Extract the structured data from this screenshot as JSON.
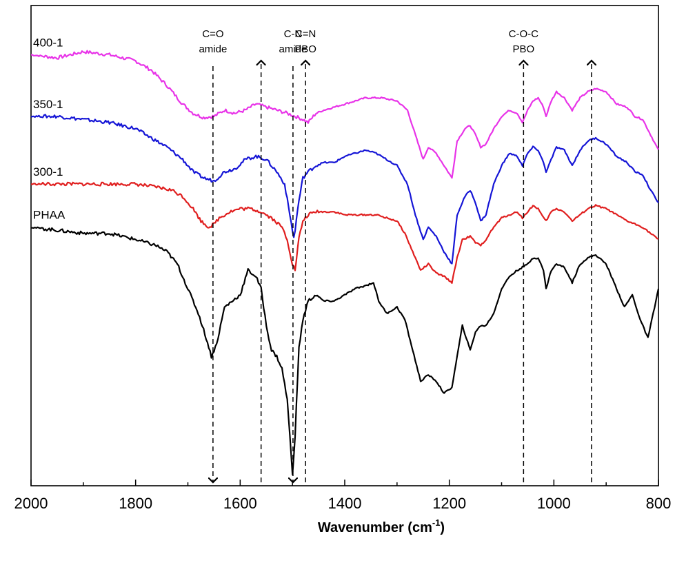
{
  "chart_data": {
    "type": "line",
    "xlabel": "Wavenumber (cm",
    "xlabel_sup": "-1",
    "xlabel_end": ")",
    "ylabel": "",
    "xlim": [
      2000,
      800
    ],
    "x_reversed": true,
    "xticks": [
      "2000",
      "1800",
      "1600",
      "1400",
      "1200",
      "1000",
      "800"
    ],
    "grid": false,
    "y_ticks_shown": false,
    "series": [
      {
        "name": "400-1",
        "color": "#e833e8",
        "points": [
          [
            2000,
            18
          ],
          [
            1950,
            17.5
          ],
          [
            1900,
            18.5
          ],
          [
            1850,
            18
          ],
          [
            1800,
            17
          ],
          [
            1770,
            15.5
          ],
          [
            1740,
            13
          ],
          [
            1710,
            10
          ],
          [
            1690,
            8.5
          ],
          [
            1670,
            7.8
          ],
          [
            1650,
            8
          ],
          [
            1630,
            9
          ],
          [
            1610,
            8.5
          ],
          [
            1590,
            9
          ],
          [
            1570,
            10
          ],
          [
            1550,
            9.5
          ],
          [
            1530,
            9
          ],
          [
            1510,
            8.5
          ],
          [
            1495,
            8
          ],
          [
            1480,
            7.5
          ],
          [
            1470,
            7
          ],
          [
            1455,
            8.5
          ],
          [
            1440,
            9
          ],
          [
            1420,
            9.5
          ],
          [
            1400,
            10
          ],
          [
            1380,
            10.5
          ],
          [
            1360,
            11
          ],
          [
            1330,
            11
          ],
          [
            1300,
            10.5
          ],
          [
            1280,
            9
          ],
          [
            1265,
            5
          ],
          [
            1250,
            1
          ],
          [
            1240,
            3
          ],
          [
            1225,
            2
          ],
          [
            1210,
            0
          ],
          [
            1195,
            -2
          ],
          [
            1185,
            4
          ],
          [
            1170,
            6
          ],
          [
            1160,
            6.5
          ],
          [
            1150,
            5
          ],
          [
            1140,
            3
          ],
          [
            1130,
            3.5
          ],
          [
            1115,
            6
          ],
          [
            1100,
            8
          ],
          [
            1085,
            9
          ],
          [
            1070,
            8.5
          ],
          [
            1060,
            7
          ],
          [
            1050,
            9
          ],
          [
            1040,
            10.5
          ],
          [
            1030,
            11
          ],
          [
            1020,
            9.5
          ],
          [
            1015,
            8
          ],
          [
            1005,
            10.5
          ],
          [
            995,
            12
          ],
          [
            980,
            11
          ],
          [
            965,
            9
          ],
          [
            950,
            11
          ],
          [
            935,
            12
          ],
          [
            920,
            12.5
          ],
          [
            900,
            12
          ],
          [
            880,
            10
          ],
          [
            860,
            9.5
          ],
          [
            845,
            8
          ],
          [
            830,
            7.5
          ],
          [
            815,
            5
          ],
          [
            800,
            2.5
          ]
        ]
      },
      {
        "name": "350-1",
        "color": "#1515d6",
        "points": [
          [
            2000,
            8
          ],
          [
            1950,
            8
          ],
          [
            1900,
            7.5
          ],
          [
            1850,
            7
          ],
          [
            1800,
            6
          ],
          [
            1770,
            4.5
          ],
          [
            1740,
            3
          ],
          [
            1710,
            1
          ],
          [
            1690,
            -1
          ],
          [
            1670,
            -2
          ],
          [
            1650,
            -2.5
          ],
          [
            1630,
            -1
          ],
          [
            1610,
            -0.5
          ],
          [
            1590,
            1
          ],
          [
            1570,
            1.5
          ],
          [
            1550,
            1
          ],
          [
            1530,
            -1
          ],
          [
            1515,
            -3
          ],
          [
            1505,
            -8
          ],
          [
            1497,
            -12
          ],
          [
            1490,
            -7
          ],
          [
            1480,
            -2
          ],
          [
            1470,
            -1
          ],
          [
            1455,
            0
          ],
          [
            1440,
            0.5
          ],
          [
            1420,
            0.5
          ],
          [
            1400,
            1.5
          ],
          [
            1380,
            2
          ],
          [
            1360,
            2.5
          ],
          [
            1340,
            2
          ],
          [
            1320,
            1
          ],
          [
            1300,
            0
          ],
          [
            1280,
            -3
          ],
          [
            1265,
            -8
          ],
          [
            1250,
            -12
          ],
          [
            1240,
            -10
          ],
          [
            1225,
            -11.5
          ],
          [
            1210,
            -14
          ],
          [
            1195,
            -16
          ],
          [
            1185,
            -8
          ],
          [
            1170,
            -5
          ],
          [
            1160,
            -4
          ],
          [
            1150,
            -6
          ],
          [
            1140,
            -9
          ],
          [
            1130,
            -8
          ],
          [
            1115,
            -3
          ],
          [
            1100,
            0
          ],
          [
            1085,
            2
          ],
          [
            1070,
            1.5
          ],
          [
            1060,
            0
          ],
          [
            1050,
            2
          ],
          [
            1040,
            3
          ],
          [
            1030,
            2.5
          ],
          [
            1020,
            0.5
          ],
          [
            1015,
            -1
          ],
          [
            1005,
            1
          ],
          [
            995,
            3
          ],
          [
            980,
            2.5
          ],
          [
            965,
            0
          ],
          [
            950,
            2.5
          ],
          [
            935,
            4
          ],
          [
            920,
            4.5
          ],
          [
            900,
            3.5
          ],
          [
            880,
            1.5
          ],
          [
            860,
            0.5
          ],
          [
            845,
            -1
          ],
          [
            830,
            -1.5
          ],
          [
            815,
            -4
          ],
          [
            800,
            -6
          ]
        ]
      },
      {
        "name": "300-1",
        "color": "#e01e1e",
        "points": [
          [
            2000,
            -3
          ],
          [
            1950,
            -3
          ],
          [
            1900,
            -3
          ],
          [
            1850,
            -3
          ],
          [
            1800,
            -3
          ],
          [
            1760,
            -3.5
          ],
          [
            1730,
            -4
          ],
          [
            1710,
            -5
          ],
          [
            1690,
            -7
          ],
          [
            1675,
            -9
          ],
          [
            1660,
            -10
          ],
          [
            1650,
            -9.5
          ],
          [
            1640,
            -8.5
          ],
          [
            1620,
            -7.5
          ],
          [
            1600,
            -7
          ],
          [
            1580,
            -7
          ],
          [
            1560,
            -7.5
          ],
          [
            1540,
            -8.5
          ],
          [
            1520,
            -10
          ],
          [
            1510,
            -12
          ],
          [
            1500,
            -16
          ],
          [
            1495,
            -17
          ],
          [
            1488,
            -12
          ],
          [
            1480,
            -9
          ],
          [
            1470,
            -8
          ],
          [
            1455,
            -7.5
          ],
          [
            1440,
            -7.5
          ],
          [
            1420,
            -7.5
          ],
          [
            1400,
            -8
          ],
          [
            1380,
            -8
          ],
          [
            1360,
            -8
          ],
          [
            1340,
            -8
          ],
          [
            1320,
            -8.5
          ],
          [
            1300,
            -9
          ],
          [
            1285,
            -11
          ],
          [
            1270,
            -14
          ],
          [
            1255,
            -17
          ],
          [
            1240,
            -16
          ],
          [
            1225,
            -17.5
          ],
          [
            1210,
            -18
          ],
          [
            1195,
            -19
          ],
          [
            1185,
            -15
          ],
          [
            1175,
            -12
          ],
          [
            1160,
            -11.5
          ],
          [
            1150,
            -12.5
          ],
          [
            1140,
            -13
          ],
          [
            1130,
            -12
          ],
          [
            1115,
            -10
          ],
          [
            1100,
            -8.5
          ],
          [
            1085,
            -8
          ],
          [
            1070,
            -7.5
          ],
          [
            1060,
            -8.5
          ],
          [
            1050,
            -7.5
          ],
          [
            1040,
            -6.5
          ],
          [
            1030,
            -7
          ],
          [
            1020,
            -8.5
          ],
          [
            1015,
            -9
          ],
          [
            1005,
            -7.5
          ],
          [
            995,
            -7
          ],
          [
            980,
            -7.5
          ],
          [
            965,
            -9
          ],
          [
            950,
            -8
          ],
          [
            935,
            -7
          ],
          [
            920,
            -6.5
          ],
          [
            900,
            -7
          ],
          [
            880,
            -8
          ],
          [
            860,
            -9
          ],
          [
            845,
            -9.5
          ],
          [
            830,
            -10
          ],
          [
            815,
            -11
          ],
          [
            800,
            -12
          ]
        ]
      },
      {
        "name": "PHAA",
        "color": "#000000",
        "points": [
          [
            2000,
            -10
          ],
          [
            1950,
            -10.5
          ],
          [
            1900,
            -11
          ],
          [
            1850,
            -11
          ],
          [
            1800,
            -12
          ],
          [
            1780,
            -12.5
          ],
          [
            1760,
            -13
          ],
          [
            1740,
            -14
          ],
          [
            1720,
            -16
          ],
          [
            1700,
            -20
          ],
          [
            1680,
            -24
          ],
          [
            1665,
            -28
          ],
          [
            1655,
            -31
          ],
          [
            1645,
            -29
          ],
          [
            1630,
            -23
          ],
          [
            1615,
            -22
          ],
          [
            1600,
            -21
          ],
          [
            1585,
            -17
          ],
          [
            1570,
            -18
          ],
          [
            1560,
            -20
          ],
          [
            1550,
            -26
          ],
          [
            1540,
            -30
          ],
          [
            1530,
            -31
          ],
          [
            1520,
            -33
          ],
          [
            1510,
            -38
          ],
          [
            1505,
            -44
          ],
          [
            1500,
            -50
          ],
          [
            1495,
            -44
          ],
          [
            1488,
            -30
          ],
          [
            1480,
            -25
          ],
          [
            1470,
            -22
          ],
          [
            1455,
            -21
          ],
          [
            1440,
            -22
          ],
          [
            1420,
            -22
          ],
          [
            1400,
            -21
          ],
          [
            1380,
            -20
          ],
          [
            1360,
            -19.5
          ],
          [
            1345,
            -19
          ],
          [
            1335,
            -22
          ],
          [
            1320,
            -24
          ],
          [
            1300,
            -23
          ],
          [
            1285,
            -25
          ],
          [
            1270,
            -30
          ],
          [
            1255,
            -35
          ],
          [
            1240,
            -34
          ],
          [
            1225,
            -35
          ],
          [
            1210,
            -37
          ],
          [
            1195,
            -36
          ],
          [
            1185,
            -31
          ],
          [
            1175,
            -26
          ],
          [
            1160,
            -30
          ],
          [
            1150,
            -27
          ],
          [
            1140,
            -26
          ],
          [
            1130,
            -26
          ],
          [
            1115,
            -24
          ],
          [
            1100,
            -20
          ],
          [
            1085,
            -18
          ],
          [
            1070,
            -17
          ],
          [
            1060,
            -16.5
          ],
          [
            1050,
            -16
          ],
          [
            1040,
            -15
          ],
          [
            1030,
            -15
          ],
          [
            1020,
            -17
          ],
          [
            1015,
            -20
          ],
          [
            1005,
            -17
          ],
          [
            995,
            -16
          ],
          [
            980,
            -16.5
          ],
          [
            965,
            -19
          ],
          [
            950,
            -16
          ],
          [
            935,
            -15
          ],
          [
            920,
            -14.5
          ],
          [
            900,
            -16
          ],
          [
            880,
            -20
          ],
          [
            865,
            -23
          ],
          [
            850,
            -21
          ],
          [
            835,
            -25
          ],
          [
            820,
            -28
          ],
          [
            810,
            -24
          ],
          [
            800,
            -20
          ]
        ]
      }
    ],
    "annotations": [
      {
        "line1": "C=O",
        "line2": "amide",
        "x": 1652,
        "arrow": "down"
      },
      {
        "line1": "",
        "line2": "",
        "x": 1560,
        "arrow": "up"
      },
      {
        "line1": "C-N",
        "line2": "amide",
        "x": 1499,
        "arrow": "down"
      },
      {
        "line1": "C=N",
        "line2": "PBO",
        "x": 1475,
        "arrow": "up"
      },
      {
        "line1": "C-O-C",
        "line2": "PBO",
        "x": 1058,
        "arrow": "up"
      },
      {
        "line1": "",
        "line2": "",
        "x": 928,
        "arrow": "up"
      }
    ]
  }
}
